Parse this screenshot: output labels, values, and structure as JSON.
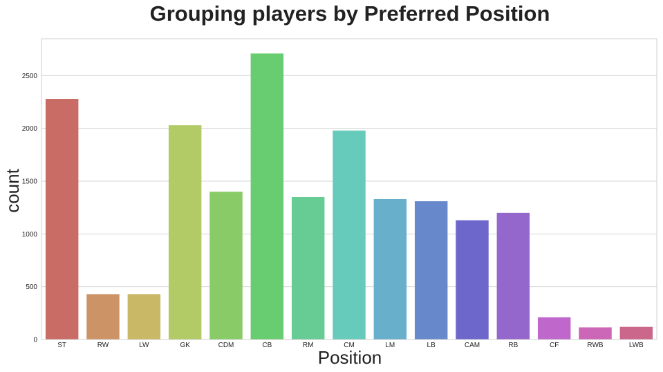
{
  "chart_data": {
    "type": "bar",
    "title": "Grouping players by Preferred Position",
    "xlabel": "Position",
    "ylabel": "count",
    "categories": [
      "ST",
      "RW",
      "LW",
      "GK",
      "CDM",
      "CB",
      "RM",
      "CM",
      "LM",
      "LB",
      "CAM",
      "RB",
      "CF",
      "RWB",
      "LWB"
    ],
    "values": [
      2280,
      430,
      430,
      2030,
      1400,
      2710,
      1350,
      1980,
      1330,
      1310,
      1130,
      1200,
      210,
      115,
      120
    ],
    "colors": [
      "#c96c66",
      "#cc9367",
      "#c9b966",
      "#b3cb67",
      "#88cb67",
      "#68cc70",
      "#67cb94",
      "#67cbbc",
      "#67afcb",
      "#6788cb",
      "#6d67cb",
      "#9367cb",
      "#c067cb",
      "#cb67b6",
      "#cb678a"
    ],
    "yticks": [
      0,
      500,
      1000,
      1500,
      2000,
      2500
    ],
    "ylim": [
      0,
      2850
    ],
    "grid": true,
    "legend": "none"
  }
}
